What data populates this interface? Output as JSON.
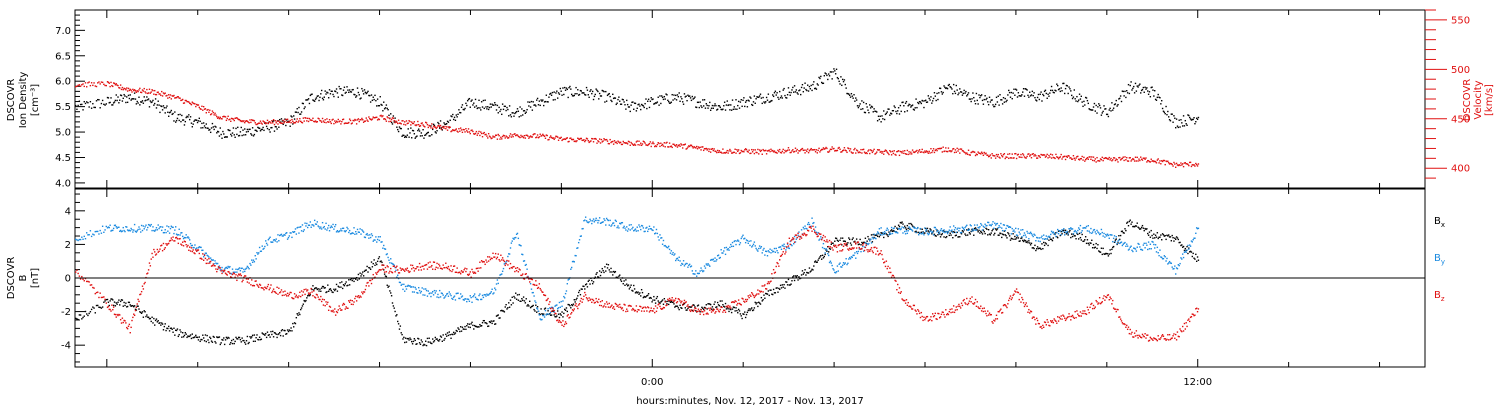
{
  "xlabel": "hours:minutes, Nov. 12, 2017 - Nov. 13, 2017",
  "colors": {
    "black": "#000000",
    "blue": "#1a8ae0",
    "red": "#e01010"
  },
  "chart_data": [
    {
      "type": "scatter",
      "panel": "top",
      "ylabel_left": [
        "DSCOVR",
        "Ion Density",
        "[cm⁻³]"
      ],
      "ylabel_right": [
        "DSCOVR",
        "Velocity",
        "[km/s]"
      ],
      "ylim_left": [
        3.9,
        7.4
      ],
      "ylim_right": [
        380,
        560
      ],
      "yticks_left": [
        4.0,
        4.5,
        5.0,
        5.5,
        6.0,
        6.5,
        7.0
      ],
      "yticks_right": [
        400,
        450,
        500,
        550
      ],
      "x_range_hours": [
        -12.7,
        17.0
      ],
      "xtick_labels": [
        {
          "hour": 0,
          "label": "0:00"
        },
        {
          "hour": 12,
          "label": "12:00"
        }
      ],
      "series": [
        {
          "name": "Ion Density",
          "color": "#000000",
          "axis": "left",
          "x": [
            -12.7,
            -12.0,
            -11.5,
            -11.0,
            -10.5,
            -10.0,
            -9.5,
            -9.0,
            -8.5,
            -8.0,
            -7.5,
            -7.0,
            -6.5,
            -6.0,
            -5.5,
            -5.0,
            -4.5,
            -4.0,
            -3.5,
            -3.0,
            -2.5,
            -2.0,
            -1.5,
            -1.0,
            -0.5,
            0.0,
            0.5,
            1.0,
            1.5,
            2.0,
            2.5,
            3.0,
            3.5,
            4.0,
            4.5,
            5.0,
            5.5,
            6.0,
            6.5,
            7.0,
            7.5,
            8.0,
            8.5,
            9.0,
            9.5,
            10.0,
            10.5,
            11.0,
            11.5,
            12.0
          ],
          "y": [
            5.5,
            5.6,
            5.7,
            5.6,
            5.3,
            5.2,
            5.0,
            5.0,
            5.1,
            5.2,
            5.7,
            5.8,
            5.8,
            5.6,
            5.0,
            5.0,
            5.2,
            5.6,
            5.5,
            5.4,
            5.6,
            5.8,
            5.8,
            5.7,
            5.5,
            5.6,
            5.7,
            5.6,
            5.5,
            5.6,
            5.7,
            5.8,
            5.9,
            6.2,
            5.6,
            5.3,
            5.5,
            5.6,
            5.9,
            5.7,
            5.6,
            5.8,
            5.7,
            5.9,
            5.6,
            5.4,
            5.9,
            5.8,
            5.2,
            5.3
          ]
        },
        {
          "name": "Velocity",
          "color": "#e01010",
          "axis": "right",
          "x": [
            -12.7,
            -12.0,
            -11.5,
            -11.0,
            -10.5,
            -10.0,
            -9.5,
            -9.0,
            -8.5,
            -8.0,
            -7.5,
            -7.0,
            -6.5,
            -6.0,
            -5.5,
            -5.0,
            -4.5,
            -4.0,
            -3.5,
            -3.0,
            -2.5,
            -2.0,
            -1.5,
            -1.0,
            -0.5,
            0.0,
            0.5,
            1.0,
            1.5,
            2.0,
            2.5,
            3.0,
            3.5,
            4.0,
            4.5,
            5.0,
            5.5,
            6.0,
            6.5,
            7.0,
            7.5,
            8.0,
            8.5,
            9.0,
            9.5,
            10.0,
            10.5,
            11.0,
            11.5,
            12.0
          ],
          "y": [
            485,
            486,
            480,
            478,
            472,
            463,
            452,
            448,
            447,
            448,
            450,
            448,
            448,
            452,
            447,
            445,
            440,
            438,
            432,
            434,
            433,
            430,
            429,
            428,
            426,
            425,
            424,
            421,
            418,
            418,
            417,
            419,
            418,
            420,
            418,
            417,
            416,
            418,
            420,
            416,
            413,
            413,
            413,
            412,
            410,
            409,
            410,
            409,
            404,
            405
          ]
        }
      ]
    },
    {
      "type": "scatter",
      "panel": "bottom",
      "ylabel_left": [
        "DSCOVR",
        "B",
        "[nT]"
      ],
      "ylim": [
        -5.3,
        5.3
      ],
      "yticks": [
        -4,
        -2,
        0,
        2,
        4
      ],
      "x_range_hours": [
        -12.7,
        17.0
      ],
      "series": [
        {
          "name": "Bx",
          "legend": {
            "base": "B",
            "sub": "x"
          },
          "color": "#000000",
          "x": [
            -12.7,
            -12.0,
            -11.5,
            -11.0,
            -10.5,
            -10.0,
            -9.5,
            -9.0,
            -8.5,
            -8.0,
            -7.5,
            -7.0,
            -6.5,
            -6.0,
            -5.5,
            -5.0,
            -4.5,
            -4.0,
            -3.5,
            -3.0,
            -2.5,
            -2.0,
            -1.5,
            -1.0,
            -0.5,
            0.0,
            0.5,
            1.0,
            1.5,
            2.0,
            2.5,
            3.0,
            3.5,
            4.0,
            4.5,
            5.0,
            5.5,
            6.0,
            6.5,
            7.0,
            7.5,
            8.0,
            8.5,
            9.0,
            9.5,
            10.0,
            10.5,
            11.0,
            11.5,
            12.0
          ],
          "y": [
            -2.5,
            -1.4,
            -1.5,
            -2.5,
            -3.2,
            -3.5,
            -3.7,
            -3.7,
            -3.4,
            -3.2,
            -0.6,
            -0.6,
            0.1,
            1.2,
            -3.6,
            -3.8,
            -3.4,
            -2.8,
            -2.6,
            -1.0,
            -1.9,
            -2.2,
            -0.5,
            0.7,
            -0.5,
            -1.2,
            -1.6,
            -1.8,
            -1.5,
            -2.2,
            -1.0,
            -0.2,
            0.6,
            2.2,
            2.2,
            2.5,
            3.2,
            2.8,
            2.6,
            2.8,
            2.8,
            2.4,
            1.8,
            2.8,
            2.4,
            1.4,
            3.4,
            2.6,
            2.4,
            1.1
          ]
        },
        {
          "name": "By",
          "legend": {
            "base": "B",
            "sub": "y"
          },
          "color": "#1a8ae0",
          "x": [
            -12.7,
            -12.0,
            -11.5,
            -11.0,
            -10.5,
            -10.0,
            -9.5,
            -9.0,
            -8.5,
            -8.0,
            -7.5,
            -7.0,
            -6.5,
            -6.0,
            -5.5,
            -5.0,
            -4.5,
            -4.0,
            -3.5,
            -3.0,
            -2.5,
            -2.0,
            -1.5,
            -1.0,
            -0.5,
            0.0,
            0.5,
            1.0,
            1.5,
            2.0,
            2.5,
            3.0,
            3.5,
            4.0,
            4.5,
            5.0,
            5.5,
            6.0,
            6.5,
            7.0,
            7.5,
            8.0,
            8.5,
            9.0,
            9.5,
            10.0,
            10.5,
            11.0,
            11.5,
            12.0
          ],
          "y": [
            2.4,
            3.0,
            3.0,
            3.0,
            2.9,
            1.8,
            0.6,
            0.4,
            2.2,
            2.6,
            3.3,
            3.0,
            2.8,
            2.3,
            -0.5,
            -0.8,
            -1.0,
            -1.2,
            -0.8,
            2.8,
            -2.3,
            -1.5,
            3.5,
            3.4,
            3.0,
            3.0,
            1.2,
            0.3,
            1.5,
            2.4,
            1.5,
            2.0,
            3.4,
            0.5,
            1.5,
            2.8,
            2.9,
            2.8,
            2.9,
            3.0,
            3.2,
            2.8,
            2.4,
            2.8,
            3.0,
            2.6,
            1.8,
            2.0,
            0.5,
            3.0
          ]
        },
        {
          "name": "Bz",
          "legend": {
            "base": "B",
            "sub": "z"
          },
          "color": "#e01010",
          "x": [
            -12.7,
            -12.0,
            -11.5,
            -11.0,
            -10.5,
            -10.0,
            -9.5,
            -9.0,
            -8.5,
            -8.0,
            -7.5,
            -7.0,
            -6.5,
            -6.0,
            -5.5,
            -5.0,
            -4.5,
            -4.0,
            -3.5,
            -3.0,
            -2.5,
            -2.0,
            -1.5,
            -1.0,
            -0.5,
            0.0,
            0.5,
            1.0,
            1.5,
            2.0,
            2.5,
            3.0,
            3.5,
            4.0,
            4.5,
            5.0,
            5.5,
            6.0,
            6.5,
            7.0,
            7.5,
            8.0,
            8.5,
            9.0,
            9.5,
            10.0,
            10.5,
            11.0,
            11.5,
            12.0
          ],
          "y": [
            0.5,
            -1.5,
            -3.0,
            1.5,
            2.4,
            1.5,
            0.4,
            0.0,
            -0.5,
            -1.0,
            -0.8,
            -2.0,
            -1.2,
            0.6,
            0.5,
            0.8,
            0.7,
            0.3,
            1.5,
            0.5,
            -0.5,
            -2.8,
            -1.0,
            -1.6,
            -1.8,
            -1.9,
            -1.2,
            -2.0,
            -1.9,
            -1.3,
            -0.5,
            2.2,
            3.0,
            1.8,
            2.0,
            1.6,
            -1.2,
            -2.4,
            -2.0,
            -1.2,
            -2.5,
            -0.8,
            -2.8,
            -2.4,
            -2.0,
            -1.0,
            -3.2,
            -3.6,
            -3.5,
            -1.8
          ]
        }
      ]
    }
  ]
}
